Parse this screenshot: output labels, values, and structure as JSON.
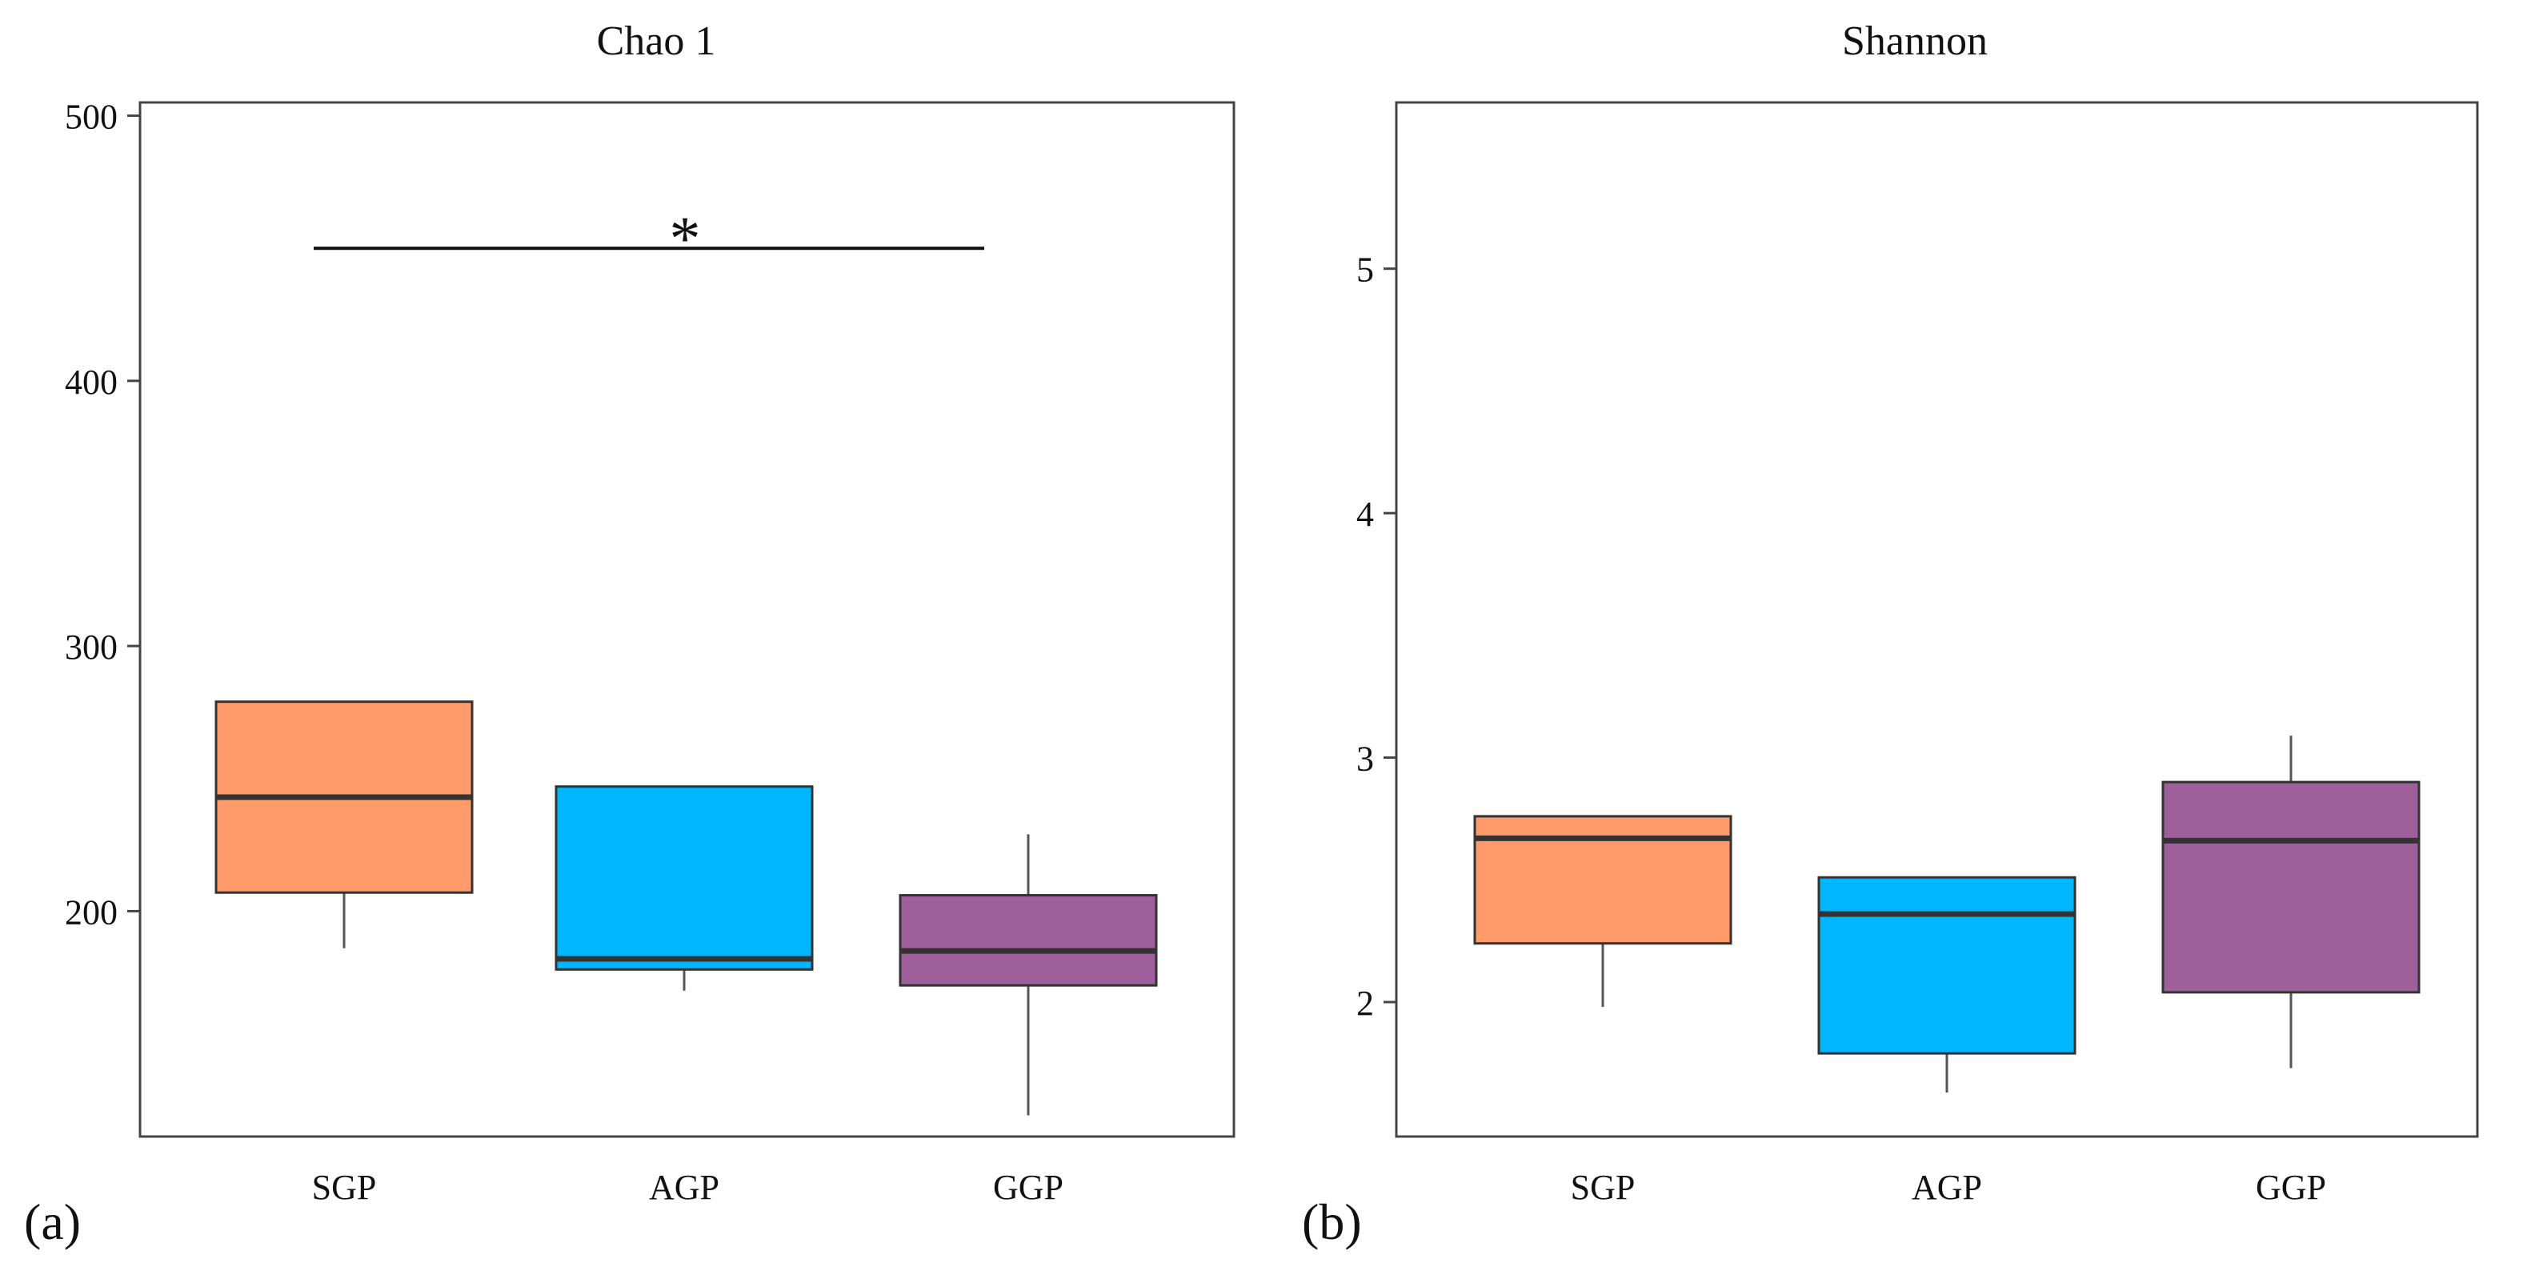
{
  "chart_data": [
    {
      "type": "box",
      "panel_label": "(a)",
      "title": "Chao 1",
      "xlabel": "",
      "ylabel": "",
      "categories": [
        "SGP",
        "AGP",
        "GGP"
      ],
      "ylim": [
        115,
        505
      ],
      "yticks": [
        200,
        300,
        400,
        500
      ],
      "grid": false,
      "boxes": [
        {
          "name": "SGP",
          "whisker_low": 186,
          "q1": 207,
          "median": 243,
          "q3": 279,
          "whisker_high": 279,
          "color": "#FF9A6A"
        },
        {
          "name": "AGP",
          "whisker_low": 170,
          "q1": 178,
          "median": 182,
          "q3": 247,
          "whisker_high": 247,
          "color": "#00B7FF"
        },
        {
          "name": "GGP",
          "whisker_low": 123,
          "q1": 172,
          "median": 185,
          "q3": 206,
          "whisker_high": 229,
          "color": "#9E5F9A"
        }
      ],
      "significance": [
        {
          "from": "SGP",
          "to": "GGP",
          "y": 450,
          "label": "*"
        }
      ]
    },
    {
      "type": "box",
      "panel_label": "(b)",
      "title": "Shannon",
      "xlabel": "",
      "ylabel": "",
      "categories": [
        "SGP",
        "AGP",
        "GGP"
      ],
      "ylim": [
        1.45,
        5.68
      ],
      "yticks": [
        2,
        3,
        4,
        5
      ],
      "grid": false,
      "boxes": [
        {
          "name": "SGP",
          "whisker_low": 1.98,
          "q1": 2.24,
          "median": 2.67,
          "q3": 2.76,
          "whisker_high": 2.76,
          "color": "#FF9A6A"
        },
        {
          "name": "AGP",
          "whisker_low": 1.63,
          "q1": 1.79,
          "median": 2.36,
          "q3": 2.51,
          "whisker_high": 2.51,
          "color": "#00B7FF"
        },
        {
          "name": "GGP",
          "whisker_low": 1.73,
          "q1": 2.04,
          "median": 2.66,
          "q3": 2.9,
          "whisker_high": 3.09,
          "color": "#9E5F9A"
        }
      ],
      "significance": []
    }
  ]
}
